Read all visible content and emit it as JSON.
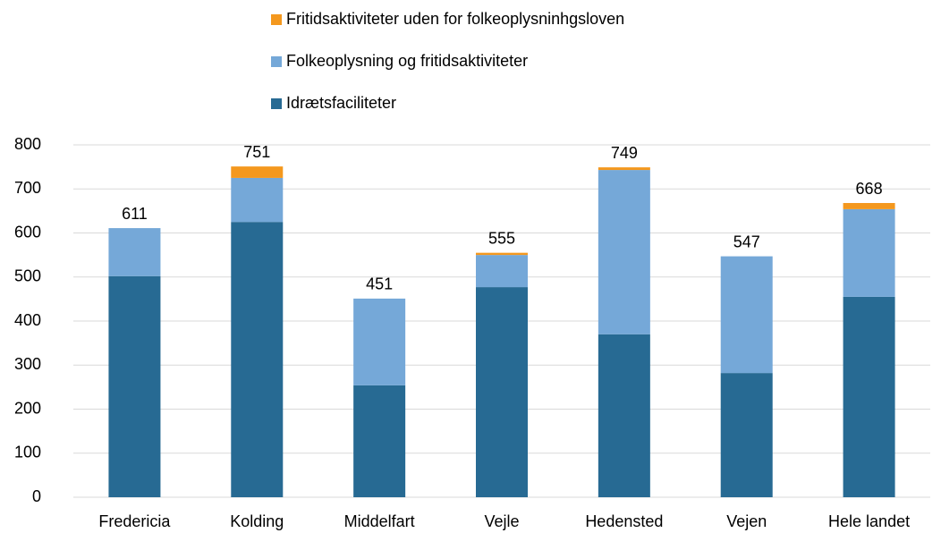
{
  "chart_data": {
    "type": "stacked_bar",
    "categories": [
      "Fredericia",
      "Kolding",
      "Middelfart",
      "Vejle",
      "Hedensted",
      "Vejen",
      "Hele landet"
    ],
    "series": [
      {
        "name": "Idrætsfaciliteter",
        "color": "#276a93",
        "values": [
          502,
          625,
          254,
          477,
          370,
          282,
          455
        ]
      },
      {
        "name": "Folkeoplysning og fritidsaktiviteter",
        "color": "#75a8d8",
        "values": [
          109,
          100,
          197,
          73,
          373,
          265,
          199
        ]
      },
      {
        "name": "Fritidsaktiviteter uden for folkeoplysninhgsloven",
        "color": "#f4981e",
        "values": [
          0,
          26,
          0,
          5,
          6,
          0,
          14
        ]
      }
    ],
    "totals": [
      611,
      751,
      451,
      555,
      749,
      547,
      668
    ],
    "ylim": [
      0,
      800
    ],
    "yticks": [
      0,
      100,
      200,
      300,
      400,
      500,
      600,
      700,
      800
    ],
    "grid": true
  }
}
